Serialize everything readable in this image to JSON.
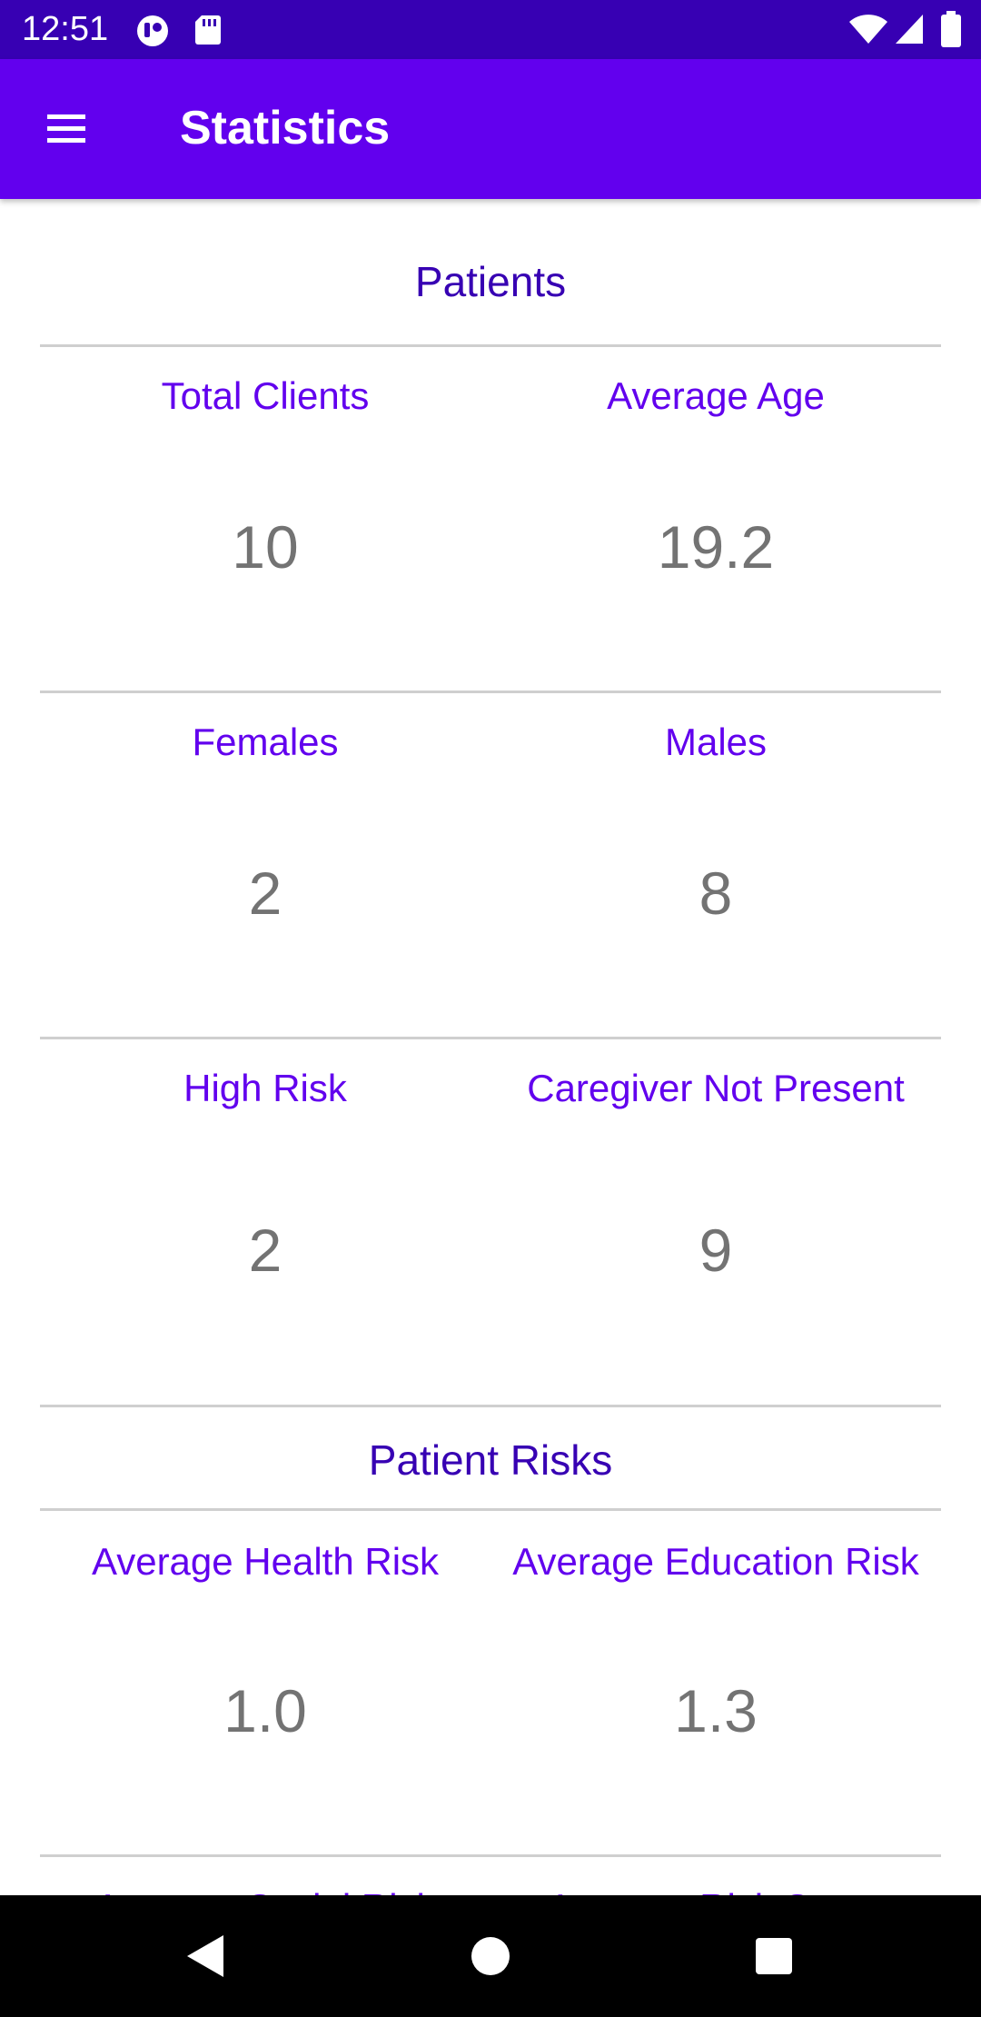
{
  "status_bar": {
    "time": "12:51",
    "icons": [
      "notification-icon",
      "sd-card-icon",
      "wifi-icon",
      "cellular-signal-icon",
      "battery-icon"
    ]
  },
  "app_bar": {
    "title": "Statistics",
    "menu_icon": "menu-icon"
  },
  "sections": {
    "patients": {
      "title": "Patients",
      "total_clients": {
        "label": "Total Clients",
        "value": "10"
      },
      "average_age": {
        "label": "Average Age",
        "value": "19.2"
      },
      "females": {
        "label": "Females",
        "value": "2"
      },
      "males": {
        "label": "Males",
        "value": "8"
      },
      "high_risk": {
        "label": "High Risk",
        "value": "2"
      },
      "caregiver_not_present": {
        "label": "Caregiver Not Present",
        "value": "9"
      }
    },
    "patient_risks": {
      "title": "Patient Risks",
      "average_health_risk": {
        "label": "Average Health Risk",
        "value": "1.0"
      },
      "average_education_risk": {
        "label": "Average Education Risk",
        "value": "1.3"
      },
      "average_social_risk": {
        "label": "Average Social Risk",
        "value": ""
      },
      "average_risk_score": {
        "label": "Average Risk Score",
        "value": ""
      }
    }
  },
  "navigation_bar": {
    "icons": [
      "back-icon",
      "home-icon",
      "recents-icon"
    ]
  },
  "colors": {
    "status_bar": "#3700B3",
    "app_bar": "#6200EE",
    "section_title": "#3700B3",
    "label": "#6200EE",
    "value": "#737373",
    "divider": "#cfcfcf"
  }
}
